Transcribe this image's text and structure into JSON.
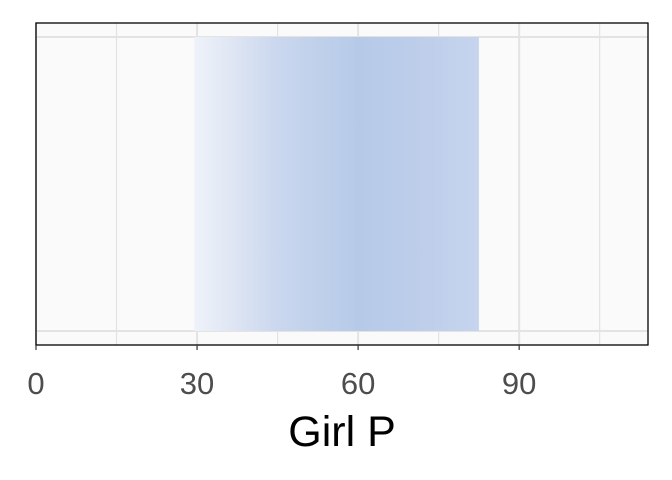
{
  "chart_data": {
    "type": "area",
    "xlabel": "Girl P",
    "ylabel": "",
    "xlim": [
      0,
      114
    ],
    "x_ticks": [
      0,
      30,
      60,
      90
    ],
    "x_tick_labels": [
      "0",
      "30",
      "60",
      "90"
    ],
    "grid": true,
    "band": {
      "x_start": 29.5,
      "x_end": 82.5,
      "gradient_stops": [
        {
          "x": 29.5,
          "color": "#eef2fa"
        },
        {
          "x": 36,
          "color": "#e0e7f4"
        },
        {
          "x": 45,
          "color": "#cad7ee"
        },
        {
          "x": 60,
          "color": "#b6cae8"
        },
        {
          "x": 70,
          "color": "#bccdea"
        },
        {
          "x": 82.5,
          "color": "#c6d4ee"
        }
      ]
    },
    "colors": {
      "panel_background": "#fafafa",
      "grid": "#e3e3e3",
      "border": "#000000"
    }
  }
}
